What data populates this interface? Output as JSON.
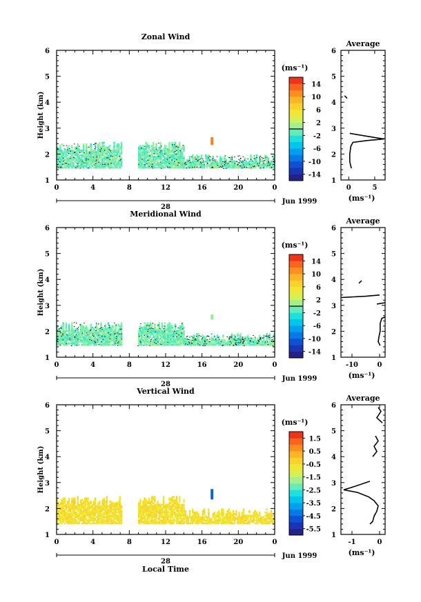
{
  "chart_data": [
    {
      "type": "heatmap",
      "title": "Zonal Wind",
      "ylabel": "Height (km)",
      "xlabel": "",
      "xlim": [
        0,
        24
      ],
      "ylim": [
        1,
        6
      ],
      "xticks": [
        "0",
        "4",
        "8",
        "12",
        "16",
        "20",
        "0"
      ],
      "yticks": [
        "1",
        "2",
        "3",
        "4",
        "5",
        "6"
      ],
      "date_axis": {
        "day": "28",
        "label": "Jun 1999"
      },
      "colorbar": {
        "unit": "(ms⁻¹)",
        "min": -15,
        "max": 15,
        "ticks": [
          "14",
          "10",
          "6",
          "2",
          "-2",
          "-6",
          "-10",
          "-14"
        ]
      },
      "field": {
        "base_value": -0.5,
        "min_height": 1.45,
        "max_height": 2.45,
        "gaps": [
          [
            7.1,
            8.9
          ]
        ],
        "features": [
          {
            "time": 17.1,
            "height_range": [
              2.35,
              2.65
            ],
            "value": 11
          }
        ]
      },
      "profile": {
        "title": "Average",
        "xlabel": "(ms⁻¹)",
        "xlim": [
          -1.5,
          7
        ],
        "xticks": [
          "0",
          "5"
        ],
        "segments": [
          [
            [
              -0.3,
              4.15
            ],
            [
              -0.8,
              4.25
            ]
          ],
          [
            [
              0.2,
              2.8
            ],
            [
              2.5,
              2.72
            ],
            [
              5.5,
              2.62
            ],
            [
              6.8,
              2.58
            ],
            [
              3.5,
              2.52
            ],
            [
              0.8,
              2.45
            ],
            [
              0.4,
              2.3
            ],
            [
              0.2,
              2.0
            ],
            [
              0.2,
              1.7
            ],
            [
              0.5,
              1.45
            ]
          ]
        ]
      }
    },
    {
      "type": "heatmap",
      "title": "Meridional Wind",
      "ylabel": "Height (km)",
      "xlabel": "",
      "xlim": [
        0,
        24
      ],
      "ylim": [
        1,
        6
      ],
      "xticks": [
        "0",
        "4",
        "8",
        "12",
        "16",
        "20",
        "0"
      ],
      "yticks": [
        "1",
        "2",
        "3",
        "4",
        "5",
        "6"
      ],
      "date_axis": {
        "day": "28",
        "label": "Jun 1999"
      },
      "colorbar": {
        "unit": "(ms⁻¹)",
        "min": -15,
        "max": 15,
        "ticks": [
          "14",
          "10",
          "6",
          "2",
          "-2",
          "-6",
          "-10",
          "-14"
        ]
      },
      "field": {
        "base_value": -0.5,
        "min_height": 1.45,
        "max_height": 2.35,
        "gaps": [
          [
            7.1,
            8.9
          ]
        ],
        "features": [
          {
            "time": 17.1,
            "height_range": [
              2.45,
              2.65
            ],
            "value": 0.5
          }
        ]
      },
      "profile": {
        "title": "Average",
        "xlabel": "(ms⁻¹)",
        "xlim": [
          -14,
          2
        ],
        "xticks": [
          "-10",
          "0"
        ],
        "segments": [
          [
            [
              -7.5,
              3.85
            ],
            [
              -6.5,
              3.95
            ]
          ],
          [
            [
              -14,
              3.3
            ],
            [
              -5,
              3.35
            ],
            [
              0,
              3.4
            ]
          ],
          [
            [
              -1,
              3.05
            ],
            [
              2,
              3.1
            ]
          ],
          [
            [
              2,
              2.55
            ],
            [
              0.8,
              2.5
            ],
            [
              0.2,
              2.3
            ],
            [
              0.2,
              2.0
            ],
            [
              -0.2,
              1.8
            ],
            [
              -0.5,
              1.6
            ],
            [
              0.2,
              1.45
            ]
          ]
        ]
      }
    },
    {
      "type": "heatmap",
      "title": "Vertical Wind",
      "ylabel": "Height (km)",
      "xlabel": "Local Time",
      "xlim": [
        0,
        24
      ],
      "ylim": [
        1,
        6
      ],
      "xticks": [
        "0",
        "4",
        "8",
        "12",
        "16",
        "20",
        "0"
      ],
      "yticks": [
        "1",
        "2",
        "3",
        "4",
        "5",
        "6"
      ],
      "date_axis": {
        "day": "28",
        "label": "Jun 1999"
      },
      "colorbar": {
        "unit": "(ms⁻¹)",
        "min": -6,
        "max": 2,
        "ticks": [
          "1.5",
          "0.5",
          "-0.5",
          "-1.5",
          "-2.5",
          "-3.5",
          "-4.5",
          "-5.5"
        ]
      },
      "field": {
        "base_value": -0.6,
        "min_height": 1.4,
        "max_height": 2.45,
        "gaps": [
          [
            7.1,
            8.9
          ]
        ],
        "features": [
          {
            "time": 17.1,
            "height_range": [
              2.35,
              2.75
            ],
            "value": -4.5
          }
        ]
      },
      "profile": {
        "title": "Average",
        "xlabel": "(ms⁻¹)",
        "xlim": [
          -1.4,
          0.2
        ],
        "xticks": [
          "-1",
          "0"
        ],
        "segments": [
          [
            [
              -0.05,
              5.9
            ],
            [
              0.05,
              5.75
            ],
            [
              -0.1,
              5.5
            ],
            [
              0.1,
              5.3
            ]
          ],
          [
            [
              -0.15,
              4.8
            ],
            [
              -0.05,
              4.6
            ],
            [
              -0.2,
              4.4
            ],
            [
              -0.1,
              4.2
            ],
            [
              -0.25,
              4.0
            ]
          ],
          [
            [
              -0.35,
              3.05
            ],
            [
              -0.9,
              2.85
            ],
            [
              -1.3,
              2.72
            ],
            [
              -0.8,
              2.62
            ],
            [
              -0.4,
              2.45
            ],
            [
              -0.2,
              2.3
            ],
            [
              -0.05,
              2.1
            ],
            [
              -0.1,
              1.9
            ],
            [
              -0.2,
              1.7
            ],
            [
              -0.25,
              1.5
            ],
            [
              -0.35,
              1.4
            ]
          ]
        ]
      }
    }
  ]
}
